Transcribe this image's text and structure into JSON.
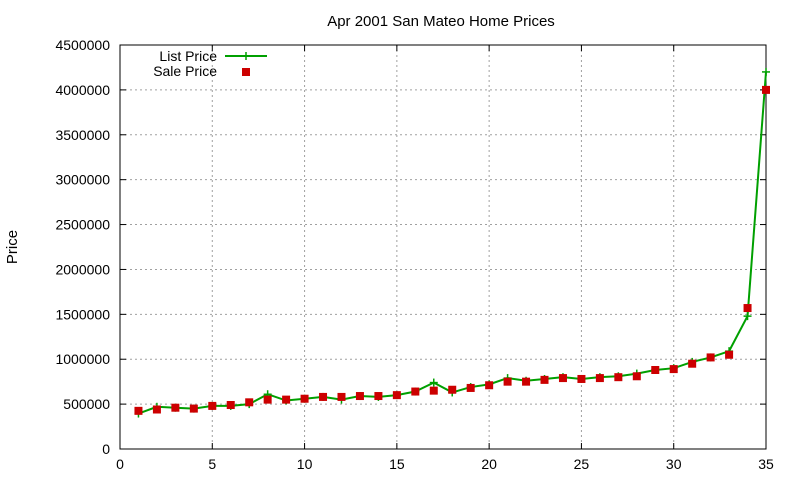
{
  "chart_data": {
    "type": "line",
    "title": "Apr 2001 San Mateo Home Prices",
    "xlabel": "",
    "ylabel": "Price",
    "xlim": [
      0,
      35
    ],
    "ylim": [
      0,
      4500000
    ],
    "x_ticks": [
      "0",
      "5",
      "10",
      "15",
      "20",
      "25",
      "30",
      "35"
    ],
    "y_ticks": [
      "0",
      "500000",
      "1000000",
      "1500000",
      "2000000",
      "2500000",
      "3000000",
      "3500000",
      "4000000",
      "4500000"
    ],
    "grid": true,
    "legend_position": "top-left",
    "x": [
      1,
      2,
      3,
      4,
      5,
      6,
      7,
      8,
      9,
      10,
      11,
      12,
      13,
      14,
      15,
      16,
      17,
      18,
      19,
      20,
      21,
      22,
      23,
      24,
      25,
      26,
      27,
      28,
      29,
      30,
      31,
      32,
      33,
      34,
      35
    ],
    "series": [
      {
        "name": "List Price",
        "style": "line+plus",
        "color": "#00a000",
        "values": [
          395000,
          470000,
          460000,
          450000,
          480000,
          480000,
          500000,
          610000,
          540000,
          560000,
          580000,
          550000,
          590000,
          580000,
          600000,
          640000,
          740000,
          630000,
          690000,
          720000,
          790000,
          760000,
          780000,
          800000,
          780000,
          800000,
          810000,
          840000,
          880000,
          900000,
          970000,
          1020000,
          1090000,
          1480000,
          4200000
        ]
      },
      {
        "name": "Sale Price",
        "style": "square",
        "color": "#cc0000",
        "values": [
          425000,
          440000,
          460000,
          450000,
          480000,
          490000,
          520000,
          550000,
          550000,
          560000,
          580000,
          580000,
          590000,
          590000,
          600000,
          640000,
          650000,
          660000,
          680000,
          710000,
          750000,
          750000,
          770000,
          790000,
          780000,
          790000,
          800000,
          810000,
          880000,
          890000,
          950000,
          1020000,
          1050000,
          1570000,
          4000000
        ]
      }
    ]
  }
}
